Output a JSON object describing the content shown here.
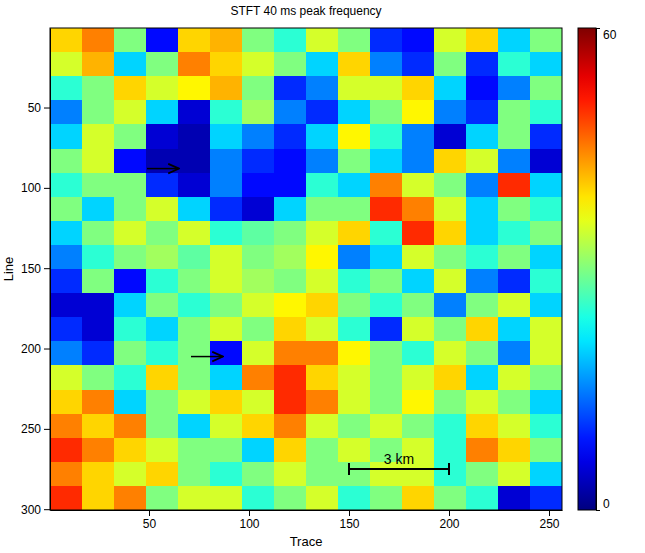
{
  "chart_data": {
    "type": "heatmap",
    "title": "STFT 40 ms peak frequency",
    "x_label": "Trace",
    "y_label": "Line",
    "xlim": [
      0.5,
      256.5
    ],
    "xticks": [
      50,
      100,
      150,
      200,
      250
    ],
    "ylim": [
      0.5,
      300.5
    ],
    "yticks": [
      50,
      100,
      150,
      200,
      250,
      300
    ],
    "x_bins": [
      0.5,
      16.5,
      32.5,
      48.5,
      64.5,
      80.5,
      96.5,
      112.5,
      128.5,
      144.5,
      160.5,
      176.5,
      192.5,
      208.5,
      224.5,
      240.5,
      256.5
    ],
    "y_bins": [
      0.5,
      15.5,
      30.5,
      45.5,
      60.5,
      75.5,
      90.5,
      105.5,
      120.5,
      135.5,
      150.5,
      165.5,
      180.5,
      195.5,
      210.5,
      225.5,
      240.5,
      255.5,
      270.5,
      285.5,
      300.5
    ],
    "cells": [
      [
        40,
        45,
        30,
        8,
        40,
        42,
        30,
        25,
        35,
        30,
        10,
        8,
        35,
        40,
        20,
        30
      ],
      [
        35,
        42,
        20,
        30,
        45,
        40,
        35,
        30,
        20,
        40,
        15,
        10,
        30,
        10,
        25,
        20
      ],
      [
        25,
        30,
        40,
        35,
        38,
        42,
        30,
        10,
        15,
        35,
        35,
        40,
        20,
        8,
        15,
        30
      ],
      [
        15,
        30,
        35,
        20,
        5,
        25,
        32,
        15,
        10,
        20,
        30,
        38,
        15,
        10,
        30,
        25
      ],
      [
        20,
        35,
        30,
        5,
        3,
        20,
        15,
        10,
        20,
        38,
        25,
        15,
        5,
        20,
        30,
        10
      ],
      [
        30,
        35,
        8,
        3,
        3,
        15,
        10,
        8,
        15,
        30,
        20,
        15,
        40,
        35,
        15,
        5
      ],
      [
        25,
        30,
        30,
        10,
        5,
        15,
        8,
        8,
        25,
        20,
        45,
        35,
        30,
        15,
        50,
        20
      ],
      [
        30,
        20,
        30,
        35,
        20,
        10,
        5,
        20,
        30,
        30,
        50,
        45,
        35,
        20,
        30,
        25
      ],
      [
        20,
        30,
        35,
        30,
        35,
        25,
        28,
        30,
        35,
        40,
        25,
        50,
        40,
        20,
        25,
        30
      ],
      [
        15,
        25,
        30,
        32,
        28,
        35,
        30,
        32,
        38,
        15,
        20,
        35,
        30,
        25,
        30,
        20
      ],
      [
        10,
        30,
        8,
        25,
        30,
        35,
        32,
        30,
        35,
        25,
        30,
        20,
        35,
        15,
        10,
        25
      ],
      [
        5,
        5,
        20,
        30,
        25,
        30,
        35,
        38,
        40,
        30,
        25,
        30,
        15,
        30,
        35,
        20
      ],
      [
        10,
        5,
        25,
        20,
        30,
        35,
        30,
        40,
        35,
        25,
        10,
        35,
        30,
        40,
        20,
        35
      ],
      [
        15,
        10,
        30,
        25,
        30,
        8,
        35,
        45,
        45,
        38,
        30,
        25,
        35,
        30,
        15,
        35
      ],
      [
        35,
        30,
        25,
        40,
        30,
        20,
        45,
        50,
        40,
        35,
        30,
        35,
        40,
        20,
        35,
        30
      ],
      [
        40,
        45,
        20,
        30,
        35,
        40,
        35,
        50,
        45,
        35,
        30,
        38,
        30,
        35,
        30,
        20
      ],
      [
        45,
        40,
        45,
        30,
        20,
        35,
        40,
        45,
        35,
        30,
        35,
        30,
        25,
        40,
        35,
        25
      ],
      [
        50,
        45,
        40,
        35,
        30,
        30,
        20,
        40,
        30,
        35,
        30,
        35,
        25,
        45,
        40,
        30
      ],
      [
        45,
        40,
        35,
        40,
        30,
        25,
        30,
        35,
        30,
        30,
        35,
        35,
        25,
        30,
        35,
        20
      ],
      [
        50,
        40,
        45,
        30,
        35,
        35,
        25,
        30,
        35,
        25,
        30,
        40,
        30,
        25,
        5,
        10
      ]
    ],
    "colorbar": {
      "range": [
        0,
        60
      ],
      "ticks": [
        0,
        60
      ]
    },
    "arrows": [
      {
        "x": 65,
        "y": 88
      },
      {
        "x": 87,
        "y": 205
      }
    ],
    "scale_bar": {
      "label": "3 km",
      "x": [
        150,
        200
      ],
      "y": 275
    }
  }
}
